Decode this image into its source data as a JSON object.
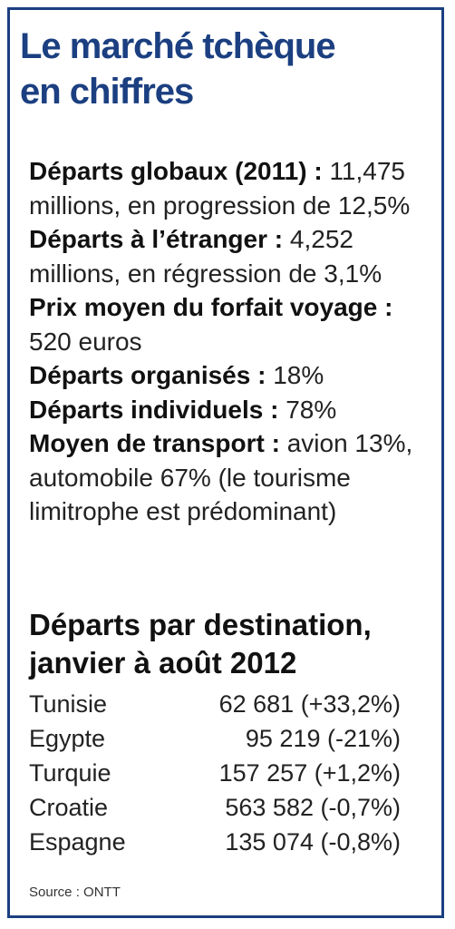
{
  "title": [
    "Le marché tchèque",
    "en chiffres"
  ],
  "stats": [
    {
      "label": "Départs globaux (2011) :",
      "text": "11,475 millions, en progression de 12,5%"
    },
    {
      "label": "Départs à l’étranger :",
      "text": "4,252 millions, en régression de 3,1%"
    },
    {
      "label": "Prix moyen du forfait voyage :",
      "text": "520 euros"
    },
    {
      "label": "Départs organisés :",
      "text": "18%"
    },
    {
      "label": "Départs individuels :",
      "text": "78%"
    },
    {
      "label": "Moyen de transport :",
      "text": "avion 13%, automobile 67% (le tourisme limitrophe est prédominant)"
    }
  ],
  "destinations": {
    "title": [
      "Départs par destination,",
      "janvier à août 2012"
    ],
    "rows": [
      {
        "country": "Tunisie",
        "value": "62 681 (+33,2%)"
      },
      {
        "country": "Egypte",
        "value": "95 219 (-21%)"
      },
      {
        "country": "Turquie",
        "value": "157 257 (+1,2%)"
      },
      {
        "country": "Croatie",
        "value": "563 582 (-0,7%)"
      },
      {
        "country": "Espagne",
        "value": "135 074 (-0,8%)"
      }
    ]
  },
  "source": "Source : ONTT",
  "colors": {
    "accent": "#1b3f80"
  }
}
